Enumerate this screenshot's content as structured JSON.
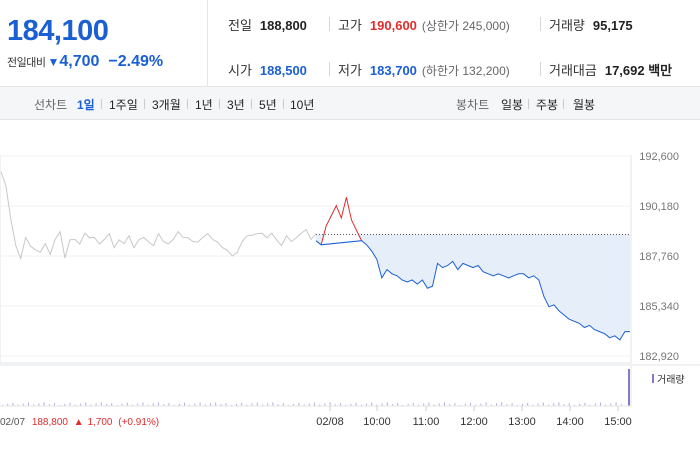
{
  "summary": {
    "price": "184,100",
    "change_label": "전일대비",
    "change_arrow": "▼",
    "change_amount": "4,700",
    "change_pct": "−2.49%"
  },
  "stats": {
    "prev_label": "전일",
    "prev_value": "188,800",
    "high_label": "고가",
    "high_value": "190,600",
    "upper_limit": "(상한가 245,000)",
    "volume_label": "거래량",
    "volume_value": "95,175",
    "open_label": "시가",
    "open_value": "188,500",
    "low_label": "저가",
    "low_value": "183,700",
    "lower_limit": "(하한가 132,200)",
    "amount_label": "거래대금",
    "amount_value": "17,692 백만"
  },
  "period_bar": {
    "line_chart_label": "선차트",
    "line_periods": [
      "1일",
      "1주일",
      "3개월",
      "1년",
      "3년",
      "5년",
      "10년"
    ],
    "selected_line_period": "1일",
    "candle_chart_label": "봉차트",
    "candle_periods": [
      "일봉",
      "주봉",
      "월봉"
    ]
  },
  "colors": {
    "up": "#e12c2c",
    "down": "#1a5fd4",
    "prev_day_line": "#c8c8c8",
    "fill": "#e6eefa"
  },
  "chart_data": {
    "type": "line",
    "title": "",
    "y_tick_labels": [
      "192,600",
      "190,180",
      "187,760",
      "185,340",
      "182,920"
    ],
    "y_ticks": [
      192600,
      190180,
      187760,
      185340,
      182920
    ],
    "ylim": [
      182920,
      192600
    ],
    "x_tick_labels": [
      "02/08",
      "10:00",
      "11:00",
      "12:00",
      "13:00",
      "14:00",
      "15:00"
    ],
    "reference_price": 188800,
    "volume_label": "거래량",
    "prev_day_info": {
      "date": "02/07",
      "close": "188,800",
      "arrow": "▲",
      "change": "1,700",
      "pct": "(+0.91%)"
    },
    "series": [
      {
        "values_prev_day": [
          191800,
          191200,
          189500,
          188300,
          187600,
          188700,
          188200,
          188100,
          187900,
          188400,
          187800,
          188600,
          188900,
          187700,
          188500,
          188600,
          188300,
          188900,
          188600,
          188700,
          188300,
          188600,
          188800,
          188200,
          188500,
          188400,
          188700,
          188200,
          188500,
          188700,
          188400,
          188300,
          188800,
          188500,
          188300,
          188600,
          188900,
          188700,
          188600,
          188500,
          188400,
          188700,
          188800,
          188600,
          188400,
          188200,
          188000,
          187800,
          187900,
          188500,
          188700,
          188800,
          188800,
          188900,
          188600,
          188900,
          188500,
          188300,
          188700,
          188500,
          188600,
          188900,
          189000,
          188600,
          188800
        ]
      },
      {
        "values_today": [
          188500,
          188300,
          189200,
          189700,
          190200,
          189600,
          190600,
          189500,
          189000,
          188500,
          188300,
          188000,
          187600,
          186700,
          187100,
          186900,
          186800,
          186600,
          186500,
          186600,
          186400,
          186600,
          186200,
          186300,
          187400,
          187200,
          187300,
          187500,
          187100,
          187400,
          187300,
          187200,
          187300,
          187000,
          186900,
          186800,
          186900,
          186800,
          186700,
          186800,
          186900,
          186900,
          186700,
          186800,
          186600,
          185800,
          185300,
          185400,
          185100,
          184900,
          184700,
          184600,
          184500,
          184300,
          184400,
          184200,
          184100,
          184000,
          183800,
          183900,
          183700,
          184100,
          184100
        ]
      }
    ]
  }
}
